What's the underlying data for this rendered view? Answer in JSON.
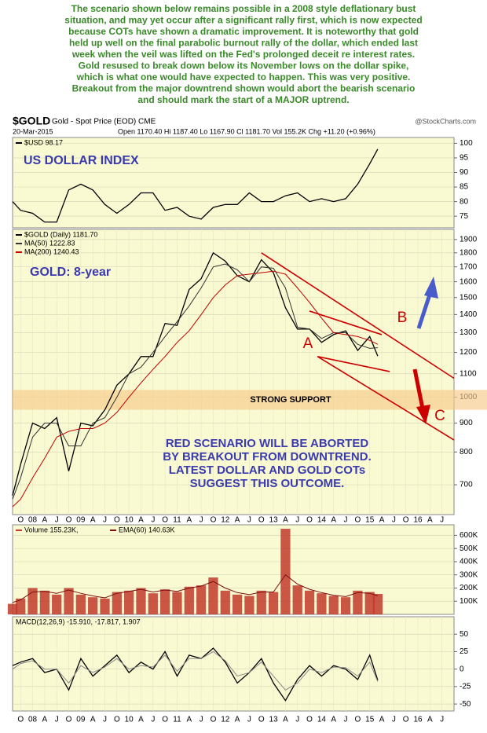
{
  "description": [
    "The scenario shown below remains possible in a 2008 style deflationary bust",
    "situation, and may yet occur after a significant rally first, which is now expected",
    "because COTs have shown a dramatic improvement. It is noteworthy that gold",
    "held up well on the final parabolic burnout rally of the dollar, which ended last",
    "week when the veil was lifted on the Fed's prolonged deceit re interest rates.",
    "Gold resused to break down below its November lows on the dollar spike,",
    "which is what one would have expected to happen. This was very positive.",
    "Breakout from the major downtrend shown would abort the bearish scenario",
    "and should mark the start of a MAJOR uptrend."
  ],
  "header": {
    "symbol": "$GOLD",
    "name": "Gold - Spot Price (EOD) CME",
    "source": "@StockCharts.com",
    "date": "20-Mar-2015",
    "quote": "Open 1170.40  Hi 1187.40  Lo 1167.90  Cl 1181.70  Vol 155.2K  Chg +11.20 (+0.96%)"
  },
  "chart_data": [
    {
      "type": "line",
      "panel_label": "US DOLLAR INDEX",
      "xlim": [
        "2007-08",
        "2016-10"
      ],
      "x": [
        "2007-08",
        "2007-10",
        "2008-01",
        "2008-04",
        "2008-07",
        "2008-10",
        "2009-01",
        "2009-04",
        "2009-07",
        "2009-10",
        "2010-01",
        "2010-04",
        "2010-07",
        "2010-10",
        "2011-01",
        "2011-04",
        "2011-07",
        "2011-10",
        "2012-01",
        "2012-04",
        "2012-07",
        "2012-10",
        "2013-01",
        "2013-04",
        "2013-07",
        "2013-10",
        "2014-01",
        "2014-04",
        "2014-07",
        "2014-10",
        "2015-01",
        "2015-03"
      ],
      "series": [
        {
          "name": "$USD 98.17",
          "color": "#000000",
          "values": [
            80,
            77,
            76,
            73,
            73,
            84,
            86,
            84,
            79,
            76,
            79,
            83,
            83,
            77,
            78,
            75,
            74,
            78,
            79,
            79,
            83,
            80,
            80,
            82,
            83,
            80,
            81,
            80,
            81,
            86,
            93,
            98
          ]
        }
      ],
      "ylim": [
        71,
        102
      ],
      "yticks": [
        75,
        80,
        85,
        90,
        95,
        100
      ],
      "grid": true
    },
    {
      "type": "line",
      "log_scale": true,
      "panel_label": "GOLD: 8-year",
      "xlim": [
        "2007-08",
        "2016-10"
      ],
      "x": [
        "2007-08",
        "2007-10",
        "2008-01",
        "2008-04",
        "2008-07",
        "2008-10",
        "2009-01",
        "2009-04",
        "2009-07",
        "2009-10",
        "2010-01",
        "2010-04",
        "2010-07",
        "2010-10",
        "2011-01",
        "2011-04",
        "2011-07",
        "2011-10",
        "2012-01",
        "2012-04",
        "2012-07",
        "2012-10",
        "2013-01",
        "2013-04",
        "2013-07",
        "2013-10",
        "2014-01",
        "2014-04",
        "2014-07",
        "2014-10",
        "2015-01",
        "2015-03"
      ],
      "series": [
        {
          "name": "$GOLD (Daily) 1181.70",
          "color": "#000000",
          "values": [
            670,
            760,
            900,
            880,
            920,
            740,
            900,
            890,
            950,
            1050,
            1100,
            1180,
            1180,
            1350,
            1340,
            1550,
            1620,
            1800,
            1740,
            1640,
            1600,
            1750,
            1660,
            1440,
            1320,
            1320,
            1250,
            1290,
            1310,
            1210,
            1280,
            1182
          ]
        },
        {
          "name": "MA(50) 1222.83",
          "color": "#333333",
          "values": [
            660,
            720,
            850,
            900,
            900,
            820,
            820,
            900,
            920,
            1000,
            1100,
            1130,
            1200,
            1280,
            1360,
            1450,
            1560,
            1700,
            1720,
            1680,
            1600,
            1700,
            1690,
            1560,
            1330,
            1320,
            1270,
            1300,
            1300,
            1240,
            1220,
            1223
          ]
        },
        {
          "name": "MA(200) 1240.43",
          "color": "#c00000",
          "values": [
            640,
            660,
            720,
            780,
            850,
            870,
            880,
            880,
            900,
            940,
            1000,
            1060,
            1120,
            1180,
            1250,
            1310,
            1400,
            1500,
            1580,
            1640,
            1650,
            1660,
            1670,
            1650,
            1560,
            1470,
            1380,
            1300,
            1290,
            1280,
            1260,
            1240
          ]
        }
      ],
      "ylim": [
        620,
        1980
      ],
      "yticks": [
        700,
        800,
        900,
        1000,
        1100,
        1200,
        1300,
        1400,
        1500,
        1600,
        1700,
        1800,
        1900
      ],
      "grid": true,
      "xticks": [
        {
          "value": "2007-10",
          "label": "O"
        },
        {
          "value": "2008-01",
          "label": "08"
        },
        {
          "value": "2008-04",
          "label": "A"
        },
        {
          "value": "2008-07",
          "label": "J"
        },
        {
          "value": "2008-10",
          "label": "O"
        },
        {
          "value": "2009-01",
          "label": "09"
        },
        {
          "value": "2009-04",
          "label": "A"
        },
        {
          "value": "2009-07",
          "label": "J"
        },
        {
          "value": "2009-10",
          "label": "O"
        },
        {
          "value": "2010-01",
          "label": "10"
        },
        {
          "value": "2010-04",
          "label": "A"
        },
        {
          "value": "2010-07",
          "label": "J"
        },
        {
          "value": "2010-10",
          "label": "O"
        },
        {
          "value": "2011-01",
          "label": "11"
        },
        {
          "value": "2011-04",
          "label": "A"
        },
        {
          "value": "2011-07",
          "label": "J"
        },
        {
          "value": "2011-10",
          "label": "O"
        },
        {
          "value": "2012-01",
          "label": "12"
        },
        {
          "value": "2012-04",
          "label": "A"
        },
        {
          "value": "2012-07",
          "label": "J"
        },
        {
          "value": "2012-10",
          "label": "O"
        },
        {
          "value": "2013-01",
          "label": "13"
        },
        {
          "value": "2013-04",
          "label": "A"
        },
        {
          "value": "2013-07",
          "label": "J"
        },
        {
          "value": "2013-10",
          "label": "O"
        },
        {
          "value": "2014-01",
          "label": "14"
        },
        {
          "value": "2014-04",
          "label": "A"
        },
        {
          "value": "2014-07",
          "label": "J"
        },
        {
          "value": "2014-10",
          "label": "O"
        },
        {
          "value": "2015-01",
          "label": "15"
        },
        {
          "value": "2015-04",
          "label": "A"
        },
        {
          "value": "2015-07",
          "label": "J"
        },
        {
          "value": "2015-10",
          "label": "O"
        },
        {
          "value": "2016-01",
          "label": "16"
        },
        {
          "value": "2016-04",
          "label": "A"
        },
        {
          "value": "2016-07",
          "label": "J"
        }
      ],
      "support_band": [
        950,
        1030
      ],
      "support_label": "STRONG SUPPORT",
      "trendlines": [
        {
          "color": "#cc0000",
          "x": [
            "2012-10",
            "2016-10"
          ],
          "y": [
            1800,
            1080
          ]
        },
        {
          "color": "#cc0000",
          "x": [
            "2013-12",
            "2016-10"
          ],
          "y": [
            1180,
            840
          ]
        },
        {
          "color": "#cc0000",
          "x": [
            "2013-10",
            "2015-04"
          ],
          "y": [
            1420,
            1290
          ]
        },
        {
          "color": "#cc0000",
          "x": [
            "2013-12",
            "2015-06"
          ],
          "y": [
            1180,
            1110
          ]
        }
      ],
      "point_labels": [
        "A",
        "B",
        "C"
      ],
      "scenario_text": [
        "RED SCENARIO WILL BE ABORTED",
        "BY BREAKOUT FROM DOWNTREND.",
        "LATEST DOLLAR AND GOLD COTs",
        "SUGGEST THIS OUTCOME."
      ]
    },
    {
      "type": "bar",
      "xlim": [
        "2007-08",
        "2016-10"
      ],
      "x": [
        "2007-08",
        "2007-10",
        "2008-01",
        "2008-04",
        "2008-07",
        "2008-10",
        "2009-01",
        "2009-04",
        "2009-07",
        "2009-10",
        "2010-01",
        "2010-04",
        "2010-07",
        "2010-10",
        "2011-01",
        "2011-04",
        "2011-07",
        "2011-10",
        "2012-01",
        "2012-04",
        "2012-07",
        "2012-10",
        "2013-01",
        "2013-04",
        "2013-07",
        "2013-10",
        "2014-01",
        "2014-04",
        "2014-07",
        "2014-10",
        "2015-01",
        "2015-03"
      ],
      "series": [
        {
          "name": "Volume 155.23K,",
          "color": "#c0392b",
          "values": [
            80000,
            120000,
            200000,
            180000,
            150000,
            200000,
            150000,
            130000,
            120000,
            170000,
            180000,
            200000,
            160000,
            190000,
            170000,
            210000,
            220000,
            280000,
            180000,
            150000,
            140000,
            180000,
            170000,
            650000,
            220000,
            180000,
            160000,
            140000,
            130000,
            180000,
            170000,
            155230
          ]
        },
        {
          "name": "EMA(60) 140.63K",
          "type": "line",
          "color": "#7a1010",
          "values": [
            90000,
            110000,
            170000,
            175000,
            160000,
            185000,
            160000,
            140000,
            125000,
            160000,
            175000,
            190000,
            170000,
            185000,
            175000,
            200000,
            215000,
            250000,
            200000,
            165000,
            150000,
            170000,
            170000,
            300000,
            230000,
            190000,
            165000,
            145000,
            135000,
            165000,
            160000,
            140630
          ]
        }
      ],
      "ylim": [
        0,
        680000
      ],
      "yticks": [
        {
          "value": 100000,
          "label": "100K"
        },
        {
          "value": 200000,
          "label": "200K"
        },
        {
          "value": 300000,
          "label": "300K"
        },
        {
          "value": 400000,
          "label": "400K"
        },
        {
          "value": 500000,
          "label": "500K"
        },
        {
          "value": 600000,
          "label": "600K"
        }
      ],
      "grid": true
    },
    {
      "type": "line",
      "legend_text": "MACD(12,26,9) -15.910, -17.817, 1.907",
      "xlim": [
        "2007-08",
        "2016-10"
      ],
      "x": [
        "2007-08",
        "2007-10",
        "2008-01",
        "2008-04",
        "2008-07",
        "2008-10",
        "2009-01",
        "2009-04",
        "2009-07",
        "2009-10",
        "2010-01",
        "2010-04",
        "2010-07",
        "2010-10",
        "2011-01",
        "2011-04",
        "2011-07",
        "2011-10",
        "2012-01",
        "2012-04",
        "2012-07",
        "2012-10",
        "2013-01",
        "2013-04",
        "2013-07",
        "2013-10",
        "2014-01",
        "2014-04",
        "2014-07",
        "2014-10",
        "2015-01",
        "2015-03"
      ],
      "series": [
        {
          "color": "#000000",
          "values": [
            5,
            10,
            15,
            -5,
            0,
            -30,
            15,
            -10,
            5,
            20,
            -5,
            10,
            0,
            25,
            -10,
            20,
            15,
            30,
            10,
            -20,
            -5,
            15,
            -20,
            -45,
            -15,
            5,
            -10,
            5,
            0,
            -15,
            20,
            -15.91
          ]
        },
        {
          "color": "#888888",
          "values": [
            0,
            8,
            12,
            0,
            0,
            -20,
            5,
            -5,
            3,
            15,
            0,
            5,
            3,
            20,
            -3,
            15,
            15,
            25,
            12,
            -10,
            -5,
            10,
            -10,
            -30,
            -20,
            0,
            -5,
            3,
            2,
            -10,
            10,
            -17.817
          ]
        }
      ],
      "ylim": [
        -60,
        75
      ],
      "yticks": [
        -50,
        -25,
        0,
        25,
        50
      ],
      "grid": true
    }
  ]
}
